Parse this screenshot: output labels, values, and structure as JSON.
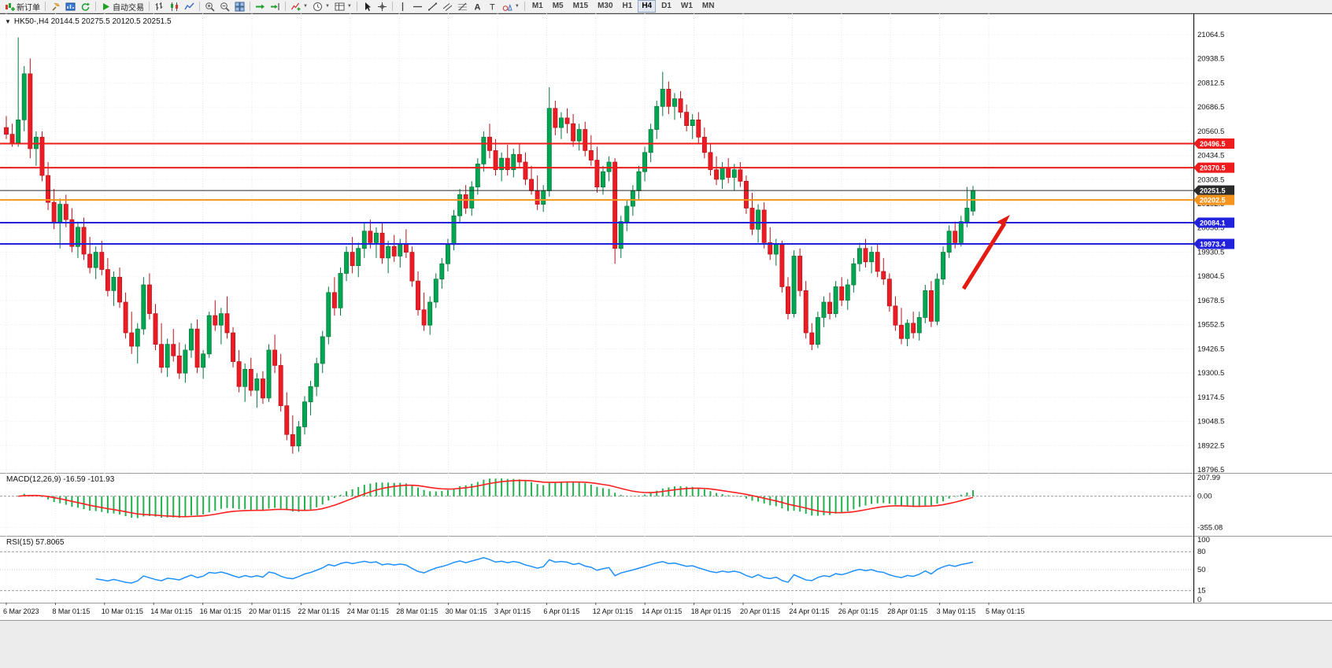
{
  "toolbar": {
    "items": [
      {
        "kind": "button",
        "name": "new-order",
        "icon": "new-order",
        "label": "新订单",
        "dropdown": false
      },
      {
        "kind": "sep"
      },
      {
        "kind": "button",
        "name": "tools",
        "icon": "hammer"
      },
      {
        "kind": "button",
        "name": "market-watch",
        "icon": "charts-window"
      },
      {
        "kind": "button",
        "name": "refresh",
        "icon": "refresh"
      },
      {
        "kind": "sep"
      },
      {
        "kind": "button",
        "name": "autotrade",
        "icon": "autotrade",
        "label": "自动交易"
      },
      {
        "kind": "sep"
      },
      {
        "kind": "button",
        "name": "chart-bars",
        "icon": "bars-chart"
      },
      {
        "kind": "button",
        "name": "chart-candles",
        "icon": "candles-chart"
      },
      {
        "kind": "button",
        "name": "chart-line",
        "icon": "line-chart"
      },
      {
        "kind": "sep"
      },
      {
        "kind": "button",
        "name": "zoom-in",
        "icon": "zoom-in"
      },
      {
        "kind": "button",
        "name": "zoom-out",
        "icon": "zoom-out"
      },
      {
        "kind": "button",
        "name": "tile-windows",
        "icon": "tile-windows"
      },
      {
        "kind": "sep"
      },
      {
        "kind": "button",
        "name": "auto-scroll",
        "icon": "auto-scroll"
      },
      {
        "kind": "button",
        "name": "chart-shift",
        "icon": "chart-shift"
      },
      {
        "kind": "sep"
      },
      {
        "kind": "button",
        "name": "indicators",
        "icon": "indicators",
        "dropdown": true
      },
      {
        "kind": "button",
        "name": "periods",
        "icon": "clock",
        "dropdown": true
      },
      {
        "kind": "button",
        "name": "templates",
        "icon": "templates",
        "dropdown": true
      },
      {
        "kind": "sep"
      },
      {
        "kind": "button",
        "name": "cursor",
        "icon": "cursor"
      },
      {
        "kind": "button",
        "name": "crosshair",
        "icon": "crosshair"
      },
      {
        "kind": "sep"
      },
      {
        "kind": "button",
        "name": "vertical-line",
        "icon": "vline"
      },
      {
        "kind": "button",
        "name": "horizontal-line",
        "icon": "hline"
      },
      {
        "kind": "button",
        "name": "trendline",
        "icon": "trendline"
      },
      {
        "kind": "button",
        "name": "equidistant-channel",
        "icon": "channel"
      },
      {
        "kind": "button",
        "name": "fibonacci",
        "icon": "fibo"
      },
      {
        "kind": "button",
        "name": "text",
        "icon": "text"
      },
      {
        "kind": "button",
        "name": "text-label",
        "icon": "label"
      },
      {
        "kind": "button",
        "name": "arrows",
        "icon": "shapes",
        "dropdown": true
      },
      {
        "kind": "sep"
      },
      {
        "kind": "timeframes"
      }
    ],
    "timeframes": [
      "M1",
      "M5",
      "M15",
      "M30",
      "H1",
      "H4",
      "D1",
      "W1",
      "MN"
    ],
    "active_timeframe": "H4"
  },
  "chart": {
    "title": "HK50-,H4 20144.5 20275.5 20120.5 20251.5",
    "symbol": "HK50-",
    "period": "H4"
  },
  "macd": {
    "label": "MACD(12,26,9) -16.59 -101.93",
    "values": [
      "-16.59",
      "-101.93"
    ],
    "axis_ticks": [
      207.99,
      0.0,
      -355.08
    ]
  },
  "rsi": {
    "label": "RSI(15) 57.8065",
    "value": "57.8065",
    "axis_ticks": [
      100,
      80,
      50,
      15,
      0
    ],
    "dashed_levels": [
      80,
      15
    ],
    "dotted_levels": [
      50
    ]
  },
  "date_axis": [
    "6 Mar 2023",
    "8 Mar 01:15",
    "10 Mar 01:15",
    "14 Mar 01:15",
    "16 Mar 01:15",
    "20 Mar 01:15",
    "22 Mar 01:15",
    "24 Mar 01:15",
    "28 Mar 01:15",
    "30 Mar 01:15",
    "3 Apr 01:15",
    "6 Apr 01:15",
    "12 Apr 01:15",
    "14 Apr 01:15",
    "18 Apr 01:15",
    "20 Apr 01:15",
    "24 Apr 01:15",
    "26 Apr 01:15",
    "28 Apr 01:15",
    "3 May 01:15",
    "5 May 01:15"
  ],
  "chart_data": {
    "type": "candlestick",
    "symbol": "HK50-",
    "timeframe": "H4",
    "current_bar_ohlc": {
      "open": 20144.5,
      "high": 20275.5,
      "low": 20120.5,
      "close": 20251.5
    },
    "ylim": [
      18780,
      21175
    ],
    "y_ticks": [
      21064.5,
      20938.5,
      20812.5,
      20686.5,
      20560.5,
      20434.5,
      20308.5,
      20182.5,
      20056.5,
      19930.5,
      19804.5,
      19678.5,
      19552.5,
      19426.5,
      19300.5,
      19174.5,
      19048.5,
      18922.5,
      18796.5
    ],
    "horizontal_lines": [
      {
        "price": 20496.5,
        "label": "20496.5",
        "color": "#ee1c1c",
        "width": 2
      },
      {
        "price": 20370.5,
        "label": "20370.5",
        "color": "#ee1c1c",
        "width": 2
      },
      {
        "price": 20251.5,
        "label": "20251.5",
        "color": "#2b2b2b",
        "width": 1
      },
      {
        "price": 20202.5,
        "label": "20202.5",
        "color": "#f7941d",
        "width": 2
      },
      {
        "price": 20084.1,
        "label": "20084.1",
        "color": "#2222dd",
        "width": 2
      },
      {
        "price": 19973.4,
        "label": "19973.4",
        "color": "#2222dd",
        "width": 2
      }
    ],
    "annotation_arrow": {
      "color": "#e31b12",
      "from": [
        1224,
        350
      ],
      "to": [
        1283,
        256
      ]
    },
    "style": {
      "up_fill": "#00A651",
      "up_stroke": "#00753a",
      "down_fill": "#ED1C24",
      "down_stroke": "#b4131a",
      "macd_histogram": "#23b14d",
      "macd_signal": "#ff1f1f",
      "rsi_line": "#1E90FF"
    },
    "candles": [
      [
        20580,
        20640,
        20520,
        20545
      ],
      [
        20545,
        20600,
        20480,
        20500
      ],
      [
        20500,
        21050,
        20480,
        20620
      ],
      [
        20620,
        20900,
        20560,
        20860
      ],
      [
        20860,
        20940,
        20420,
        20470
      ],
      [
        20470,
        20560,
        20380,
        20530
      ],
      [
        20530,
        20560,
        20300,
        20330
      ],
      [
        20330,
        20400,
        20150,
        20190
      ],
      [
        20190,
        20260,
        20050,
        20090
      ],
      [
        20090,
        20210,
        19950,
        20180
      ],
      [
        20180,
        20230,
        20060,
        20100
      ],
      [
        20100,
        20160,
        19930,
        19960
      ],
      [
        19960,
        20090,
        19900,
        20060
      ],
      [
        20060,
        20110,
        19890,
        19920
      ],
      [
        19920,
        20010,
        19820,
        19850
      ],
      [
        19850,
        19960,
        19790,
        19930
      ],
      [
        19930,
        19990,
        19810,
        19840
      ],
      [
        19840,
        19900,
        19700,
        19730
      ],
      [
        19730,
        19830,
        19650,
        19800
      ],
      [
        19800,
        19850,
        19640,
        19670
      ],
      [
        19670,
        19720,
        19480,
        19510
      ],
      [
        19510,
        19620,
        19400,
        19440
      ],
      [
        19440,
        19560,
        19350,
        19530
      ],
      [
        19530,
        19800,
        19500,
        19760
      ],
      [
        19760,
        19820,
        19580,
        19610
      ],
      [
        19610,
        19660,
        19420,
        19450
      ],
      [
        19450,
        19560,
        19300,
        19330
      ],
      [
        19330,
        19480,
        19280,
        19450
      ],
      [
        19450,
        19530,
        19360,
        19390
      ],
      [
        19390,
        19460,
        19270,
        19300
      ],
      [
        19300,
        19450,
        19250,
        19420
      ],
      [
        19420,
        19560,
        19380,
        19530
      ],
      [
        19530,
        19580,
        19300,
        19330
      ],
      [
        19330,
        19420,
        19270,
        19400
      ],
      [
        19400,
        19620,
        19380,
        19600
      ],
      [
        19600,
        19680,
        19520,
        19550
      ],
      [
        19550,
        19640,
        19450,
        19610
      ],
      [
        19610,
        19700,
        19480,
        19510
      ],
      [
        19510,
        19540,
        19330,
        19360
      ],
      [
        19360,
        19420,
        19200,
        19230
      ],
      [
        19230,
        19350,
        19150,
        19320
      ],
      [
        19320,
        19380,
        19180,
        19210
      ],
      [
        19210,
        19300,
        19120,
        19270
      ],
      [
        19270,
        19310,
        19140,
        19170
      ],
      [
        19170,
        19450,
        19150,
        19420
      ],
      [
        19420,
        19500,
        19300,
        19340
      ],
      [
        19340,
        19400,
        19100,
        19130
      ],
      [
        19130,
        19200,
        18950,
        18980
      ],
      [
        18980,
        19080,
        18880,
        18920
      ],
      [
        18920,
        19050,
        18890,
        19020
      ],
      [
        19020,
        19180,
        18980,
        19150
      ],
      [
        19150,
        19260,
        19080,
        19230
      ],
      [
        19230,
        19380,
        19180,
        19350
      ],
      [
        19350,
        19520,
        19300,
        19490
      ],
      [
        19490,
        19750,
        19450,
        19720
      ],
      [
        19720,
        19800,
        19600,
        19640
      ],
      [
        19640,
        19850,
        19600,
        19820
      ],
      [
        19820,
        19960,
        19780,
        19930
      ],
      [
        19930,
        20010,
        19820,
        19860
      ],
      [
        19860,
        19980,
        19800,
        19950
      ],
      [
        19950,
        20080,
        19900,
        20040
      ],
      [
        20040,
        20100,
        19950,
        19980
      ],
      [
        19980,
        20060,
        19900,
        20030
      ],
      [
        20030,
        20080,
        19870,
        19900
      ],
      [
        19900,
        19990,
        19820,
        19960
      ],
      [
        19960,
        20020,
        19880,
        19910
      ],
      [
        19910,
        20000,
        19850,
        19970
      ],
      [
        19970,
        20050,
        19900,
        19930
      ],
      [
        19930,
        19960,
        19750,
        19780
      ],
      [
        19780,
        19830,
        19600,
        19630
      ],
      [
        19630,
        19720,
        19520,
        19550
      ],
      [
        19550,
        19700,
        19500,
        19670
      ],
      [
        19670,
        19820,
        19640,
        19790
      ],
      [
        19790,
        19900,
        19740,
        19870
      ],
      [
        19870,
        20000,
        19830,
        19970
      ],
      [
        19970,
        20150,
        19940,
        20120
      ],
      [
        20120,
        20260,
        20080,
        20230
      ],
      [
        20230,
        20280,
        20130,
        20160
      ],
      [
        20160,
        20300,
        20120,
        20270
      ],
      [
        20270,
        20420,
        20230,
        20390
      ],
      [
        20390,
        20560,
        20350,
        20530
      ],
      [
        20530,
        20600,
        20420,
        20460
      ],
      [
        20460,
        20520,
        20330,
        20360
      ],
      [
        20360,
        20450,
        20300,
        20420
      ],
      [
        20420,
        20490,
        20330,
        20360
      ],
      [
        20360,
        20470,
        20320,
        20440
      ],
      [
        20440,
        20500,
        20370,
        20400
      ],
      [
        20400,
        20450,
        20280,
        20310
      ],
      [
        20310,
        20380,
        20230,
        20250
      ],
      [
        20250,
        20330,
        20150,
        20180
      ],
      [
        20180,
        20280,
        20140,
        20250
      ],
      [
        20250,
        20790,
        20220,
        20680
      ],
      [
        20680,
        20720,
        20540,
        20580
      ],
      [
        20580,
        20660,
        20520,
        20630
      ],
      [
        20630,
        20680,
        20550,
        20600
      ],
      [
        20600,
        20650,
        20480,
        20510
      ],
      [
        20510,
        20600,
        20460,
        20570
      ],
      [
        20570,
        20610,
        20430,
        20460
      ],
      [
        20460,
        20540,
        20380,
        20410
      ],
      [
        20410,
        20480,
        20240,
        20270
      ],
      [
        20270,
        20380,
        20230,
        20350
      ],
      [
        20350,
        20430,
        20300,
        20400
      ],
      [
        20400,
        20420,
        19870,
        19950
      ],
      [
        19950,
        20120,
        19900,
        20090
      ],
      [
        20090,
        20200,
        20040,
        20170
      ],
      [
        20170,
        20280,
        20120,
        20250
      ],
      [
        20250,
        20380,
        20200,
        20350
      ],
      [
        20350,
        20480,
        20300,
        20450
      ],
      [
        20450,
        20600,
        20400,
        20570
      ],
      [
        20570,
        20720,
        20520,
        20690
      ],
      [
        20690,
        20870,
        20640,
        20780
      ],
      [
        20780,
        20820,
        20650,
        20690
      ],
      [
        20690,
        20760,
        20620,
        20730
      ],
      [
        20730,
        20770,
        20630,
        20660
      ],
      [
        20660,
        20700,
        20560,
        20590
      ],
      [
        20590,
        20650,
        20520,
        20620
      ],
      [
        20620,
        20660,
        20500,
        20530
      ],
      [
        20530,
        20580,
        20420,
        20450
      ],
      [
        20450,
        20500,
        20330,
        20360
      ],
      [
        20360,
        20430,
        20280,
        20310
      ],
      [
        20310,
        20400,
        20260,
        20370
      ],
      [
        20370,
        20420,
        20290,
        20320
      ],
      [
        20320,
        20390,
        20250,
        20360
      ],
      [
        20360,
        20400,
        20270,
        20300
      ],
      [
        20300,
        20330,
        20130,
        20160
      ],
      [
        20160,
        20240,
        20020,
        20050
      ],
      [
        20050,
        20180,
        19980,
        20150
      ],
      [
        20150,
        20190,
        19950,
        19980
      ],
      [
        19980,
        20060,
        19890,
        19920
      ],
      [
        19920,
        20000,
        19860,
        19970
      ],
      [
        19970,
        19990,
        19720,
        19750
      ],
      [
        19750,
        19800,
        19580,
        19610
      ],
      [
        19610,
        19940,
        19590,
        19910
      ],
      [
        19910,
        19950,
        19700,
        19730
      ],
      [
        19730,
        19780,
        19480,
        19510
      ],
      [
        19510,
        19560,
        19420,
        19450
      ],
      [
        19450,
        19620,
        19430,
        19590
      ],
      [
        19590,
        19700,
        19540,
        19670
      ],
      [
        19670,
        19720,
        19580,
        19610
      ],
      [
        19610,
        19780,
        19590,
        19750
      ],
      [
        19750,
        19800,
        19650,
        19680
      ],
      [
        19680,
        19790,
        19630,
        19760
      ],
      [
        19760,
        19900,
        19720,
        19870
      ],
      [
        19870,
        19980,
        19830,
        19950
      ],
      [
        19950,
        20000,
        19850,
        19880
      ],
      [
        19880,
        19960,
        19820,
        19930
      ],
      [
        19930,
        19970,
        19800,
        19830
      ],
      [
        19830,
        19900,
        19760,
        19790
      ],
      [
        19790,
        19820,
        19620,
        19650
      ],
      [
        19650,
        19700,
        19520,
        19550
      ],
      [
        19550,
        19640,
        19450,
        19480
      ],
      [
        19480,
        19580,
        19440,
        19560
      ],
      [
        19560,
        19620,
        19480,
        19510
      ],
      [
        19510,
        19620,
        19470,
        19590
      ],
      [
        19590,
        19760,
        19560,
        19730
      ],
      [
        19730,
        19780,
        19540,
        19570
      ],
      [
        19570,
        19820,
        19550,
        19790
      ],
      [
        19790,
        19960,
        19760,
        19930
      ],
      [
        19930,
        20070,
        19900,
        20040
      ],
      [
        20040,
        20090,
        19950,
        19980
      ],
      [
        19980,
        20120,
        19960,
        20090
      ],
      [
        20090,
        20270,
        20060,
        20160
      ],
      [
        20144.5,
        20275.5,
        20120.5,
        20251.5
      ]
    ]
  }
}
